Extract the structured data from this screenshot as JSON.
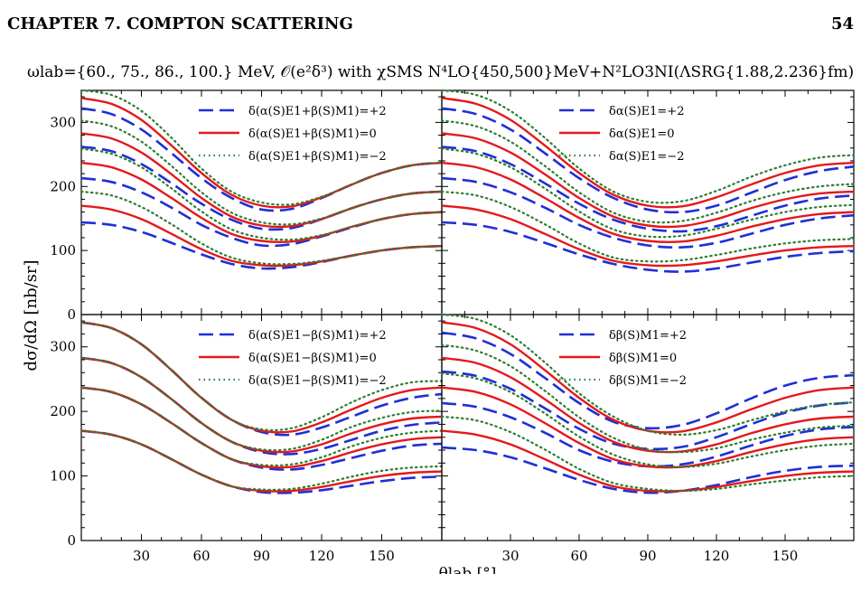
{
  "page": {
    "running_head_left": "CHAPTER 7.  COMPTON SCATTERING",
    "running_head_right": "54",
    "figure_title": "ωlab={60., 75., 86., 100.} MeV, 𝒪(e²δ³) with χSMS N⁴LO{450,500}MeV+N²LO3NI(ΛSRG{1.88,2.236}fm)"
  },
  "chart_data": {
    "type": "line",
    "xlabel": "θlab [°]",
    "ylabel": "dσ/dΩ [nb/sr]",
    "xlim": [
      0,
      180
    ],
    "ylim": [
      0,
      350
    ],
    "x_ticks": [
      30,
      60,
      90,
      120,
      150
    ],
    "y_ticks": [
      0,
      100,
      200,
      300
    ],
    "x": [
      0,
      15,
      30,
      45,
      60,
      75,
      90,
      105,
      120,
      135,
      150,
      165,
      180
    ],
    "panels": [
      {
        "id": "alpha-plus-beta",
        "legend": [
          "δ(α(S)E1+β(S)M1)=+2",
          "δ(α(S)E1+β(S)M1)=0",
          "δ(α(S)E1+β(S)M1)=−2"
        ],
        "series": [
          {
            "style": "dashed",
            "values": [
              [
                144,
                140,
                129,
                112,
                94,
                79,
                72,
                74,
                82,
                92,
                100,
                105,
                107
              ],
              [
                213,
                207,
                191,
                167,
                140,
                120,
                108,
                110,
                122,
                136,
                149,
                157,
                160
              ],
              [
                262,
                255,
                235,
                205,
                173,
                148,
                134,
                135,
                149,
                166,
                180,
                189,
                192
              ],
              [
                322,
                313,
                289,
                252,
                213,
                182,
                164,
                165,
                182,
                203,
                221,
                233,
                237
              ]
            ]
          },
          {
            "style": "solid",
            "values": [
              [
                170,
                164,
                149,
                126,
                102,
                84,
                77,
                77,
                83,
                92,
                100,
                105,
                107
              ],
              [
                237,
                230,
                211,
                182,
                151,
                126,
                115,
                114,
                123,
                137,
                149,
                157,
                160
              ],
              [
                283,
                275,
                253,
                219,
                182,
                153,
                139,
                138,
                149,
                166,
                180,
                189,
                192
              ],
              [
                338,
                329,
                304,
                264,
                221,
                187,
                170,
                169,
                183,
                203,
                221,
                233,
                237
              ]
            ]
          },
          {
            "style": "dotted",
            "values": [
              [
                192,
                186,
                168,
                141,
                111,
                89,
                80,
                79,
                84,
                92,
                100,
                105,
                107
              ],
              [
                259,
                251,
                230,
                197,
                161,
                133,
                120,
                117,
                124,
                137,
                149,
                157,
                160
              ],
              [
                303,
                294,
                270,
                232,
                191,
                159,
                144,
                141,
                150,
                166,
                180,
                189,
                192
              ],
              [
                350,
                343,
                318,
                276,
                228,
                192,
                175,
                172,
                184,
                203,
                221,
                233,
                237
              ]
            ]
          }
        ]
      },
      {
        "id": "alpha",
        "legend": [
          "δα(S)E1=+2",
          "δα(S)E1=0",
          "δα(S)E1=−2"
        ],
        "series": [
          {
            "style": "dashed",
            "values": [
              [
                144,
                140,
                129,
                112,
                94,
                79,
                70,
                67,
                72,
                81,
                90,
                96,
                99
              ],
              [
                213,
                207,
                191,
                167,
                140,
                120,
                108,
                105,
                112,
                126,
                140,
                150,
                155
              ],
              [
                262,
                255,
                235,
                205,
                173,
                148,
                134,
                130,
                138,
                154,
                170,
                181,
                186
              ],
              [
                322,
                313,
                289,
                252,
                213,
                182,
                164,
                160,
                170,
                190,
                210,
                224,
                231
              ]
            ]
          },
          {
            "style": "solid",
            "values": [
              [
                170,
                164,
                149,
                126,
                102,
                84,
                77,
                77,
                83,
                92,
                100,
                105,
                107
              ],
              [
                237,
                230,
                211,
                182,
                151,
                126,
                115,
                114,
                123,
                137,
                149,
                157,
                160
              ],
              [
                283,
                275,
                253,
                219,
                182,
                153,
                139,
                138,
                149,
                166,
                180,
                189,
                192
              ],
              [
                338,
                329,
                304,
                264,
                221,
                187,
                170,
                169,
                183,
                203,
                221,
                233,
                237
              ]
            ]
          },
          {
            "style": "dotted",
            "values": [
              [
                192,
                186,
                168,
                141,
                111,
                89,
                83,
                85,
                93,
                103,
                111,
                116,
                118
              ],
              [
                259,
                251,
                230,
                197,
                161,
                133,
                122,
                123,
                134,
                148,
                160,
                168,
                171
              ],
              [
                303,
                294,
                270,
                232,
                191,
                159,
                145,
                146,
                159,
                177,
                191,
                200,
                204
              ],
              [
                350,
                343,
                318,
                276,
                228,
                192,
                176,
                177,
                193,
                215,
                233,
                245,
                249
              ]
            ]
          }
        ]
      },
      {
        "id": "alpha-minus-beta",
        "legend": [
          "δ(α(S)E1−β(S)M1)=+2",
          "δ(α(S)E1−β(S)M1)=0",
          "δ(α(S)E1−β(S)M1)=−2"
        ],
        "series": [
          {
            "style": "dashed",
            "values": [
              [
                170,
                164,
                149,
                126,
                102,
                84,
                75,
                74,
                78,
                85,
                92,
                97,
                99
              ],
              [
                237,
                230,
                211,
                182,
                151,
                126,
                113,
                110,
                117,
                128,
                139,
                147,
                150
              ],
              [
                283,
                275,
                253,
                219,
                182,
                153,
                137,
                134,
                142,
                156,
                170,
                179,
                183
              ],
              [
                338,
                329,
                304,
                264,
                221,
                187,
                168,
                164,
                175,
                192,
                209,
                221,
                227
              ]
            ]
          },
          {
            "style": "solid",
            "values": [
              [
                170,
                164,
                149,
                126,
                102,
                84,
                77,
                77,
                83,
                92,
                100,
                105,
                107
              ],
              [
                237,
                230,
                211,
                182,
                151,
                126,
                115,
                114,
                123,
                137,
                149,
                157,
                160
              ],
              [
                283,
                275,
                253,
                219,
                182,
                153,
                139,
                138,
                149,
                166,
                180,
                189,
                192
              ],
              [
                338,
                329,
                304,
                264,
                221,
                187,
                170,
                169,
                183,
                203,
                221,
                233,
                237
              ]
            ]
          },
          {
            "style": "dotted",
            "values": [
              [
                170,
                164,
                149,
                126,
                102,
                84,
                79,
                80,
                88,
                99,
                108,
                113,
                115
              ],
              [
                237,
                230,
                211,
                182,
                151,
                126,
                117,
                118,
                129,
                146,
                159,
                167,
                170
              ],
              [
                283,
                275,
                253,
                219,
                182,
                153,
                141,
                142,
                156,
                176,
                190,
                199,
                201
              ],
              [
                338,
                329,
                304,
                264,
                221,
                187,
                172,
                174,
                191,
                214,
                233,
                245,
                247
              ]
            ]
          }
        ]
      },
      {
        "id": "beta",
        "legend": [
          "δβ(S)M1=+2",
          "δβ(S)M1=0",
          "δβ(S)M1=−2"
        ],
        "series": [
          {
            "style": "dashed",
            "values": [
              [
                144,
                140,
                129,
                112,
                94,
                80,
                74,
                77,
                86,
                98,
                108,
                114,
                116
              ],
              [
                213,
                207,
                191,
                167,
                140,
                122,
                115,
                118,
                130,
                147,
                162,
                172,
                176
              ],
              [
                262,
                255,
                235,
                205,
                173,
                150,
                142,
                145,
                160,
                180,
                198,
                209,
                214
              ],
              [
                322,
                313,
                289,
                252,
                213,
                184,
                174,
                179,
                197,
                220,
                240,
                252,
                256
              ]
            ]
          },
          {
            "style": "solid",
            "values": [
              [
                170,
                164,
                149,
                126,
                102,
                84,
                77,
                77,
                83,
                92,
                100,
                105,
                107
              ],
              [
                237,
                230,
                211,
                182,
                151,
                126,
                115,
                114,
                123,
                137,
                149,
                157,
                160
              ],
              [
                283,
                275,
                253,
                219,
                182,
                153,
                139,
                138,
                149,
                166,
                180,
                189,
                192
              ],
              [
                338,
                329,
                304,
                264,
                221,
                187,
                170,
                169,
                183,
                203,
                221,
                233,
                237
              ]
            ]
          },
          {
            "style": "dotted",
            "values": [
              [
                192,
                186,
                168,
                141,
                111,
                89,
                80,
                77,
                80,
                87,
                93,
                98,
                100
              ],
              [
                259,
                251,
                230,
                197,
                161,
                133,
                118,
                114,
                119,
                130,
                140,
                147,
                150
              ],
              [
                303,
                294,
                270,
                232,
                191,
                159,
                141,
                137,
                143,
                156,
                167,
                175,
                178
              ],
              [
                350,
                343,
                318,
                276,
                228,
                192,
                170,
                164,
                171,
                186,
                200,
                210,
                214
              ]
            ]
          }
        ]
      }
    ],
    "colors": {
      "dashed": "#1f2fd6",
      "solid": "#e3191c",
      "dotted": "#2e7d32"
    }
  }
}
